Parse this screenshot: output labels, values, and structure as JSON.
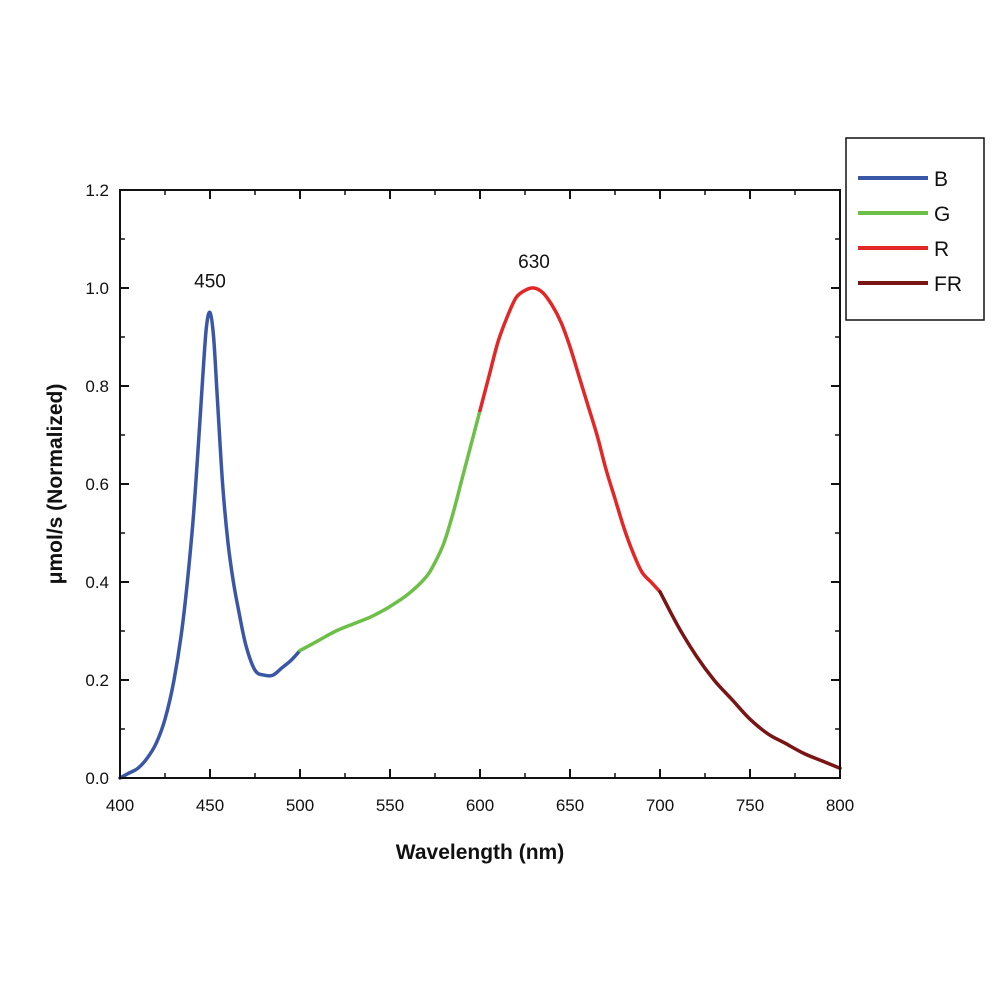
{
  "chart_data": {
    "type": "line",
    "title": "",
    "xlabel": "Wavelength (nm)",
    "ylabel": "μmol/s (Normalized)",
    "xlim": [
      400,
      800
    ],
    "ylim": [
      0,
      1.2
    ],
    "xticks": [
      400,
      450,
      500,
      550,
      600,
      650,
      700,
      750,
      800
    ],
    "yticks": [
      0.0,
      0.2,
      0.4,
      0.6,
      0.8,
      1.0,
      1.2
    ],
    "xtick_labels": [
      "400",
      "450",
      "500",
      "550",
      "600",
      "650",
      "700",
      "750",
      "800"
    ],
    "ytick_labels": [
      "0.0",
      "0.2",
      "0.4",
      "0.6",
      "0.8",
      "1.0",
      "1.2"
    ],
    "grid": false,
    "legend_position": "outside-top-right",
    "annotations": [
      {
        "text": "450",
        "x": 450,
        "y": 0.96
      },
      {
        "text": "630",
        "x": 630,
        "y": 1.0
      }
    ],
    "series": [
      {
        "name": "B",
        "color": "#3a56a6",
        "x": [
          400,
          405,
          410,
          415,
          420,
          425,
          430,
          435,
          440,
          443,
          446,
          448,
          450,
          452,
          454,
          457,
          460,
          463,
          466,
          470,
          475,
          480,
          485,
          490,
          495,
          500
        ],
        "y": [
          0.0,
          0.01,
          0.02,
          0.04,
          0.07,
          0.12,
          0.2,
          0.32,
          0.5,
          0.65,
          0.82,
          0.92,
          0.95,
          0.9,
          0.78,
          0.6,
          0.48,
          0.4,
          0.34,
          0.27,
          0.22,
          0.21,
          0.21,
          0.225,
          0.24,
          0.26
        ]
      },
      {
        "name": "G",
        "color": "#6cbf47",
        "x": [
          500,
          510,
          520,
          530,
          540,
          550,
          560,
          570,
          575,
          580,
          585,
          590,
          595,
          600
        ],
        "y": [
          0.26,
          0.28,
          0.3,
          0.315,
          0.33,
          0.35,
          0.375,
          0.41,
          0.44,
          0.48,
          0.54,
          0.61,
          0.68,
          0.75
        ]
      },
      {
        "name": "R",
        "color": "#e32726",
        "x": [
          600,
          605,
          610,
          615,
          620,
          625,
          630,
          635,
          640,
          645,
          650,
          655,
          660,
          665,
          670,
          675,
          680,
          685,
          690,
          695,
          700
        ],
        "y": [
          0.75,
          0.82,
          0.89,
          0.94,
          0.98,
          0.995,
          1.0,
          0.99,
          0.965,
          0.93,
          0.88,
          0.82,
          0.76,
          0.7,
          0.63,
          0.57,
          0.51,
          0.46,
          0.42,
          0.4,
          0.38
        ]
      },
      {
        "name": "FR",
        "color": "#7a1515",
        "x": [
          700,
          710,
          720,
          730,
          740,
          750,
          760,
          770,
          780,
          790,
          800
        ],
        "y": [
          0.38,
          0.31,
          0.25,
          0.2,
          0.16,
          0.12,
          0.09,
          0.07,
          0.05,
          0.035,
          0.02
        ]
      }
    ]
  }
}
